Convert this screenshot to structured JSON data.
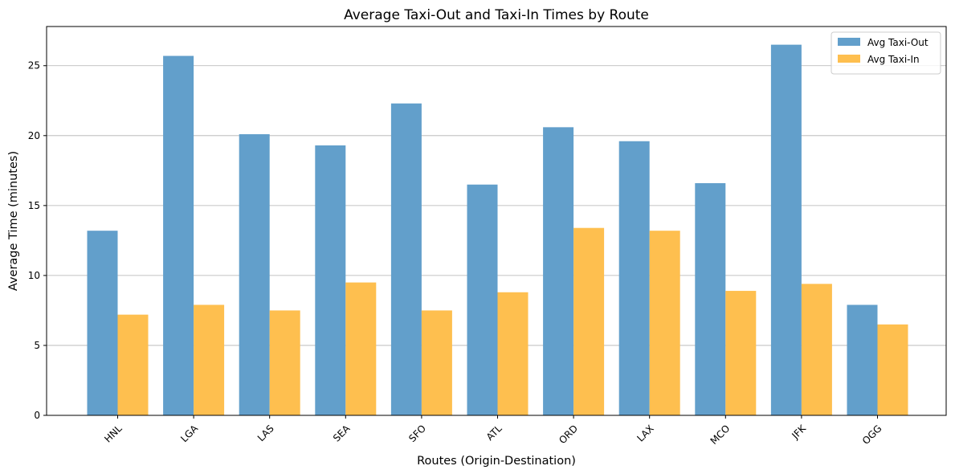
{
  "chart_data": {
    "type": "bar",
    "title": "Average Taxi-Out and Taxi-In Times by Route",
    "xlabel": "Routes (Origin-Destination)",
    "ylabel": "Average Time (minutes)",
    "categories": [
      "HNL",
      "LGA",
      "LAS",
      "SEA",
      "SFO",
      "ATL",
      "ORD",
      "LAX",
      "MCO",
      "JFK",
      "OGG"
    ],
    "series": [
      {
        "name": "Avg Taxi-Out",
        "color": "#629fcb",
        "values": [
          13.2,
          25.7,
          20.1,
          19.3,
          22.3,
          16.5,
          20.6,
          19.6,
          16.6,
          26.5,
          7.9
        ]
      },
      {
        "name": "Avg Taxi-In",
        "color": "#febf4f",
        "values": [
          7.2,
          7.9,
          7.5,
          9.5,
          7.5,
          8.8,
          13.4,
          13.2,
          8.9,
          9.4,
          6.5
        ]
      }
    ],
    "ylim": [
      0,
      27.8
    ],
    "yticks": [
      0,
      5,
      10,
      15,
      20,
      25
    ],
    "grid": "y",
    "legend_position": "top-right"
  }
}
